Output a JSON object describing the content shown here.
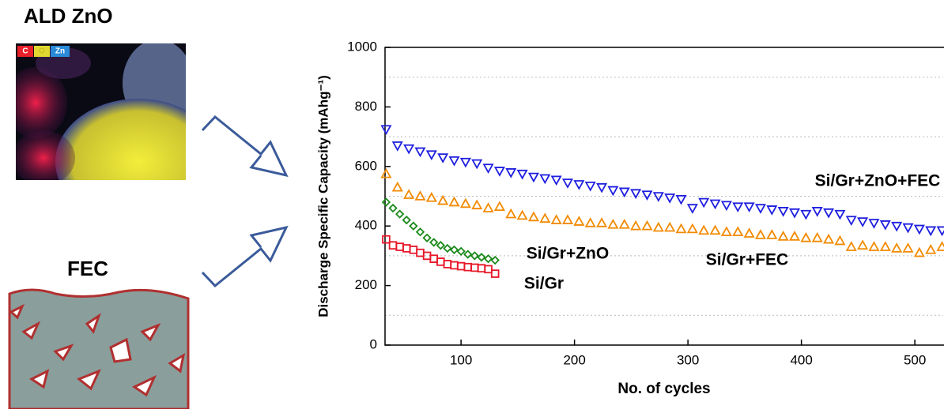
{
  "left_panel": {
    "zno_title": "ALD ZnO",
    "element_labels": [
      "C",
      "O",
      "Zn"
    ],
    "fec_title": "FEC"
  },
  "chart_data": {
    "type": "scatter",
    "xlabel": "No. of cycles",
    "ylabel": "Discharge Specific Capacity (mAhg⁻¹)",
    "xlim": [
      33,
      525
    ],
    "xticks": [
      100,
      200,
      300,
      400,
      500
    ],
    "ylim": [
      0,
      1000
    ],
    "yticks": [
      0,
      200,
      400,
      600,
      800,
      1000
    ],
    "ygrid": [
      100,
      300,
      500,
      700,
      900
    ],
    "series": [
      {
        "name": "Si/Gr+ZnO+FEC",
        "color": "#1f1fe0",
        "marker": "triangle-down",
        "x": [
          34,
          44,
          54,
          64,
          74,
          84,
          94,
          104,
          114,
          124,
          134,
          144,
          154,
          164,
          174,
          184,
          194,
          204,
          214,
          224,
          234,
          244,
          254,
          264,
          274,
          284,
          294,
          304,
          314,
          324,
          334,
          344,
          354,
          364,
          374,
          384,
          394,
          404,
          414,
          424,
          434,
          444,
          454,
          464,
          474,
          484,
          494,
          504,
          514,
          524
        ],
        "values": [
          725,
          670,
          660,
          650,
          640,
          630,
          620,
          615,
          610,
          595,
          585,
          580,
          575,
          565,
          560,
          555,
          545,
          540,
          535,
          530,
          520,
          515,
          510,
          505,
          500,
          495,
          490,
          460,
          480,
          475,
          470,
          465,
          465,
          460,
          455,
          450,
          445,
          440,
          450,
          445,
          440,
          420,
          415,
          410,
          405,
          400,
          395,
          390,
          385,
          385
        ]
      },
      {
        "name": "Si/Gr+FEC",
        "color": "#f28a00",
        "marker": "triangle-up",
        "x": [
          34,
          44,
          54,
          64,
          74,
          84,
          94,
          104,
          114,
          124,
          134,
          144,
          154,
          164,
          174,
          184,
          194,
          204,
          214,
          224,
          234,
          244,
          254,
          264,
          274,
          284,
          294,
          304,
          314,
          324,
          334,
          344,
          354,
          364,
          374,
          384,
          394,
          404,
          414,
          424,
          434,
          444,
          454,
          464,
          474,
          484,
          494,
          504,
          514,
          524
        ],
        "values": [
          575,
          530,
          505,
          500,
          495,
          485,
          480,
          475,
          470,
          460,
          465,
          440,
          435,
          430,
          425,
          420,
          420,
          415,
          410,
          410,
          405,
          405,
          400,
          400,
          395,
          395,
          390,
          390,
          385,
          385,
          380,
          380,
          375,
          370,
          370,
          365,
          365,
          360,
          360,
          355,
          350,
          330,
          335,
          330,
          330,
          325,
          325,
          310,
          320,
          330
        ]
      },
      {
        "name": "Si/Gr+ZnO",
        "color": "#1a8a1a",
        "marker": "diamond",
        "x": [
          34,
          40,
          46,
          52,
          58,
          64,
          70,
          76,
          82,
          88,
          94,
          100,
          106,
          112,
          118,
          124,
          130
        ],
        "values": [
          480,
          460,
          440,
          420,
          400,
          380,
          360,
          345,
          335,
          325,
          320,
          315,
          305,
          300,
          295,
          290,
          285
        ]
      },
      {
        "name": "Si/Gr",
        "color": "#e8182a",
        "marker": "square",
        "x": [
          34,
          40,
          46,
          52,
          58,
          64,
          70,
          76,
          82,
          88,
          94,
          100,
          106,
          112,
          118,
          124,
          130
        ],
        "values": [
          355,
          335,
          330,
          325,
          320,
          310,
          300,
          290,
          280,
          272,
          268,
          265,
          262,
          260,
          258,
          255,
          240
        ]
      }
    ]
  }
}
